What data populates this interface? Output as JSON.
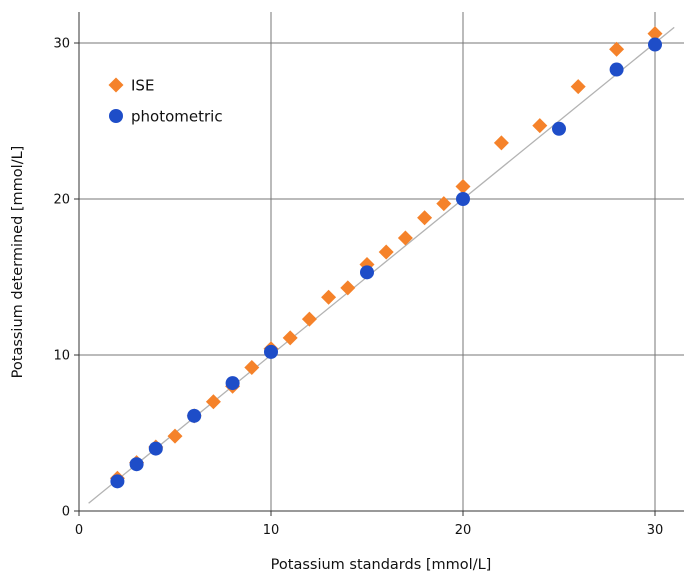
{
  "chart_data": {
    "type": "scatter",
    "title": "",
    "xlabel": "Potassium standards [mmol/L]",
    "ylabel": "Potassium determined [mmol/L]",
    "xlim": [
      0,
      31.5
    ],
    "ylim": [
      0,
      32
    ],
    "x_ticks": [
      0,
      10,
      20,
      30
    ],
    "y_ticks": [
      0,
      10,
      20,
      30
    ],
    "x_tick_labels": [
      "0",
      "10",
      "20",
      "30"
    ],
    "y_tick_labels": [
      "0",
      "10",
      "20",
      "30"
    ],
    "grid": true,
    "legend_position": "top-left",
    "reference_line": {
      "from": [
        0.5,
        0.5
      ],
      "to": [
        31,
        31
      ]
    },
    "series": [
      {
        "name": "ISE",
        "marker": "diamond",
        "color": "#F5822A",
        "x": [
          2,
          3,
          4,
          5,
          6,
          7,
          8,
          9,
          10,
          11,
          12,
          13,
          14,
          15,
          16,
          17,
          18,
          19,
          20,
          22,
          24,
          26,
          28,
          30
        ],
        "y": [
          2.1,
          3.1,
          4.1,
          4.8,
          6.1,
          7.0,
          8.0,
          9.2,
          10.4,
          11.1,
          12.3,
          13.7,
          14.3,
          15.8,
          16.6,
          17.5,
          18.8,
          19.7,
          20.8,
          23.6,
          24.7,
          27.2,
          29.6,
          30.6
        ]
      },
      {
        "name": "photometric",
        "marker": "circle",
        "color": "#1E4DC8",
        "x": [
          2,
          3,
          4,
          6,
          8,
          10,
          15,
          20,
          25,
          28,
          30
        ],
        "y": [
          1.9,
          3.0,
          4.0,
          6.1,
          8.2,
          10.2,
          15.3,
          20.0,
          24.5,
          28.3,
          29.9
        ]
      }
    ]
  }
}
